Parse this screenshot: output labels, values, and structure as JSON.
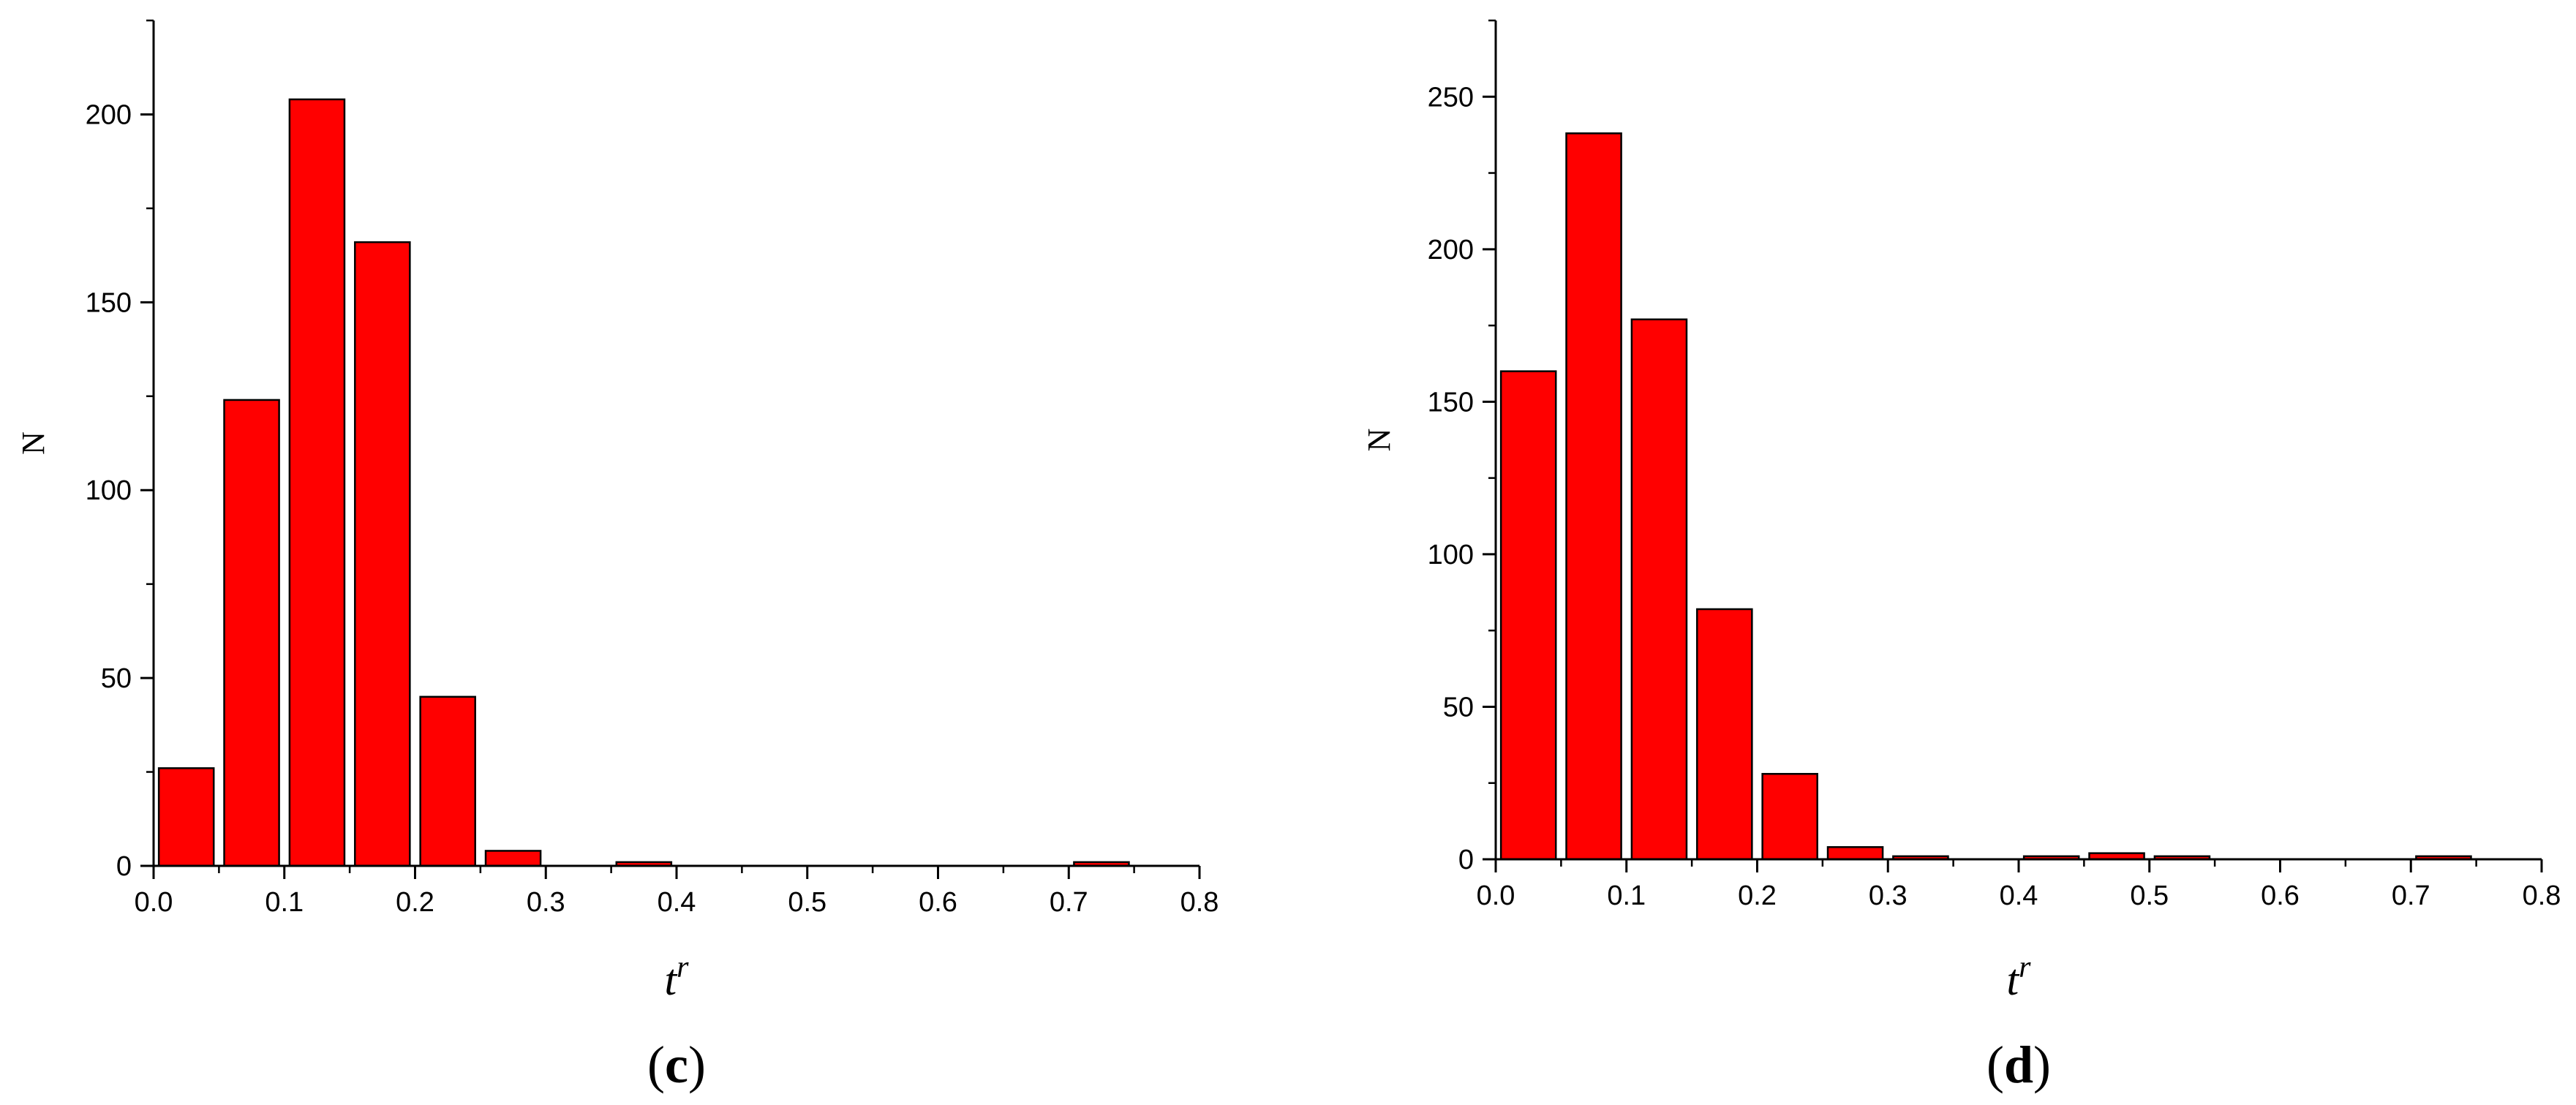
{
  "colors": {
    "bar_fill": "#ff0000",
    "bar_stroke": "#000000",
    "axis": "#000000"
  },
  "chart_data": [
    {
      "type": "bar",
      "panel_label": "(c)",
      "xlabel_base": "t",
      "xlabel_sup": "r",
      "ylabel": "N",
      "xlim": [
        0.0,
        0.8
      ],
      "ylim": [
        0,
        225
      ],
      "xticks": [
        "0.0",
        "0.1",
        "0.2",
        "0.3",
        "0.4",
        "0.5",
        "0.6",
        "0.7",
        "0.8"
      ],
      "yticks": [
        "0",
        "50",
        "100",
        "150",
        "200"
      ],
      "grid": false,
      "bin_width": 0.05,
      "bins": [
        {
          "x": 0.025,
          "value": 26
        },
        {
          "x": 0.075,
          "value": 124
        },
        {
          "x": 0.125,
          "value": 204
        },
        {
          "x": 0.175,
          "value": 166
        },
        {
          "x": 0.225,
          "value": 45
        },
        {
          "x": 0.275,
          "value": 4
        },
        {
          "x": 0.375,
          "value": 1
        },
        {
          "x": 0.725,
          "value": 1
        }
      ]
    },
    {
      "type": "bar",
      "panel_label": "(d)",
      "xlabel_base": "t",
      "xlabel_sup": "r",
      "ylabel": "N",
      "xlim": [
        0.0,
        0.8
      ],
      "ylim": [
        0,
        275
      ],
      "xticks": [
        "0.0",
        "0.1",
        "0.2",
        "0.3",
        "0.4",
        "0.5",
        "0.6",
        "0.7",
        "0.8"
      ],
      "yticks": [
        "0",
        "50",
        "100",
        "150",
        "200",
        "250"
      ],
      "grid": false,
      "bin_width": 0.05,
      "bins": [
        {
          "x": 0.025,
          "value": 160
        },
        {
          "x": 0.075,
          "value": 238
        },
        {
          "x": 0.125,
          "value": 177
        },
        {
          "x": 0.175,
          "value": 82
        },
        {
          "x": 0.225,
          "value": 28
        },
        {
          "x": 0.275,
          "value": 4
        },
        {
          "x": 0.325,
          "value": 1
        },
        {
          "x": 0.425,
          "value": 1
        },
        {
          "x": 0.475,
          "value": 2
        },
        {
          "x": 0.525,
          "value": 1
        },
        {
          "x": 0.725,
          "value": 1
        }
      ]
    }
  ]
}
